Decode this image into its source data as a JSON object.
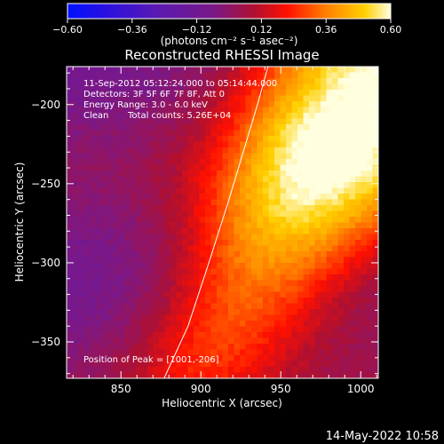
{
  "chart_data": {
    "type": "heatmap",
    "title": "Reconstructed RHESSI Image",
    "xlabel": "Heliocentric X (arcsec)",
    "ylabel": "Heliocentric Y (arcsec)",
    "xlim": [
      816,
      1011
    ],
    "ylim": [
      -373,
      -176
    ],
    "x_ticks": [
      "850",
      "900",
      "950",
      "1000"
    ],
    "y_ticks": [
      "-200",
      "-250",
      "-300",
      "-350"
    ],
    "colorbar": {
      "range": [
        -0.6,
        0.6
      ],
      "ticks": [
        "-0.60",
        "-0.36",
        "-0.12",
        "0.12",
        "0.36",
        "0.60"
      ],
      "unit_label": "(photons cm⁻² s⁻¹ asec⁻²)"
    },
    "annotations": {
      "time_range": "11-Sep-2012 05:12:24.000 to 05:14:44.000",
      "detectors": "Detectors: 3F 5F 6F 7F 8F, Att 0",
      "energy_range": "Energy Range: 3.0 - 6.0 keV",
      "method": "Clean",
      "total_counts": "Total counts: 5.26E+04",
      "peak": "Position of Peak = [1001,-206]"
    },
    "peak_position": [
      1001,
      -206
    ],
    "limb_line": [
      [
        877,
        -373
      ],
      [
        892,
        -340
      ],
      [
        905,
        -300
      ],
      [
        917,
        -262
      ],
      [
        928,
        -225
      ],
      [
        936,
        -198
      ],
      [
        942,
        -176
      ]
    ],
    "image_model": {
      "description": "bright diagonal band from lower-left to upper-right",
      "axis_start": [
        895,
        -370
      ],
      "axis_end": [
        1011,
        -176
      ],
      "peak_value": 0.6,
      "background_value": -0.05
    }
  },
  "footer": {
    "date": "14-May-2022 10:58"
  },
  "colors": {
    "background": "#000000",
    "text": "#ffffff"
  }
}
